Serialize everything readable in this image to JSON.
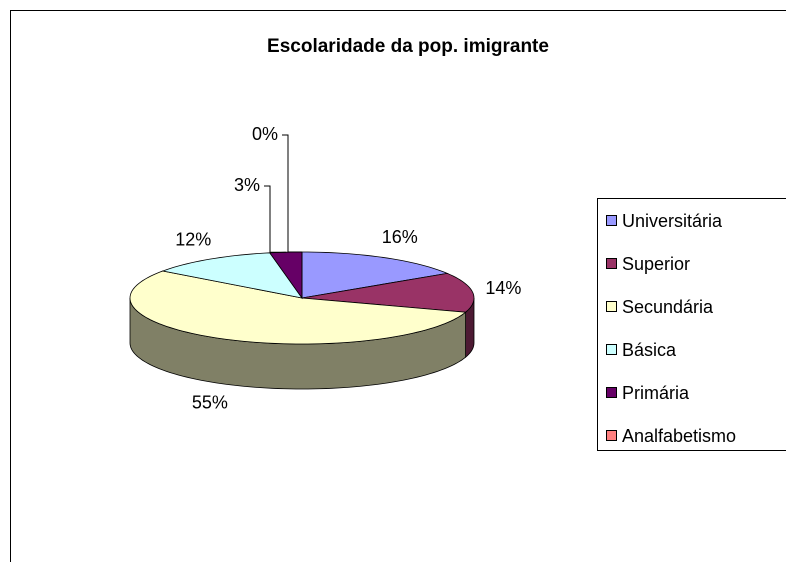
{
  "chart_data": {
    "type": "pie",
    "title": "Escolaridade da pop. imigrante",
    "categories": [
      "Universitária",
      "Superior",
      "Secundária",
      "Básica",
      "Primária",
      "Analfabetismo"
    ],
    "values": [
      16,
      14,
      55,
      12,
      3,
      0
    ],
    "value_labels": [
      "16%",
      "14%",
      "55%",
      "12%",
      "3%",
      "0%"
    ],
    "colors": [
      "#9999ff",
      "#993366",
      "#ffffcc",
      "#ccffff",
      "#660066",
      "#ff8080"
    ],
    "legend": "right"
  }
}
